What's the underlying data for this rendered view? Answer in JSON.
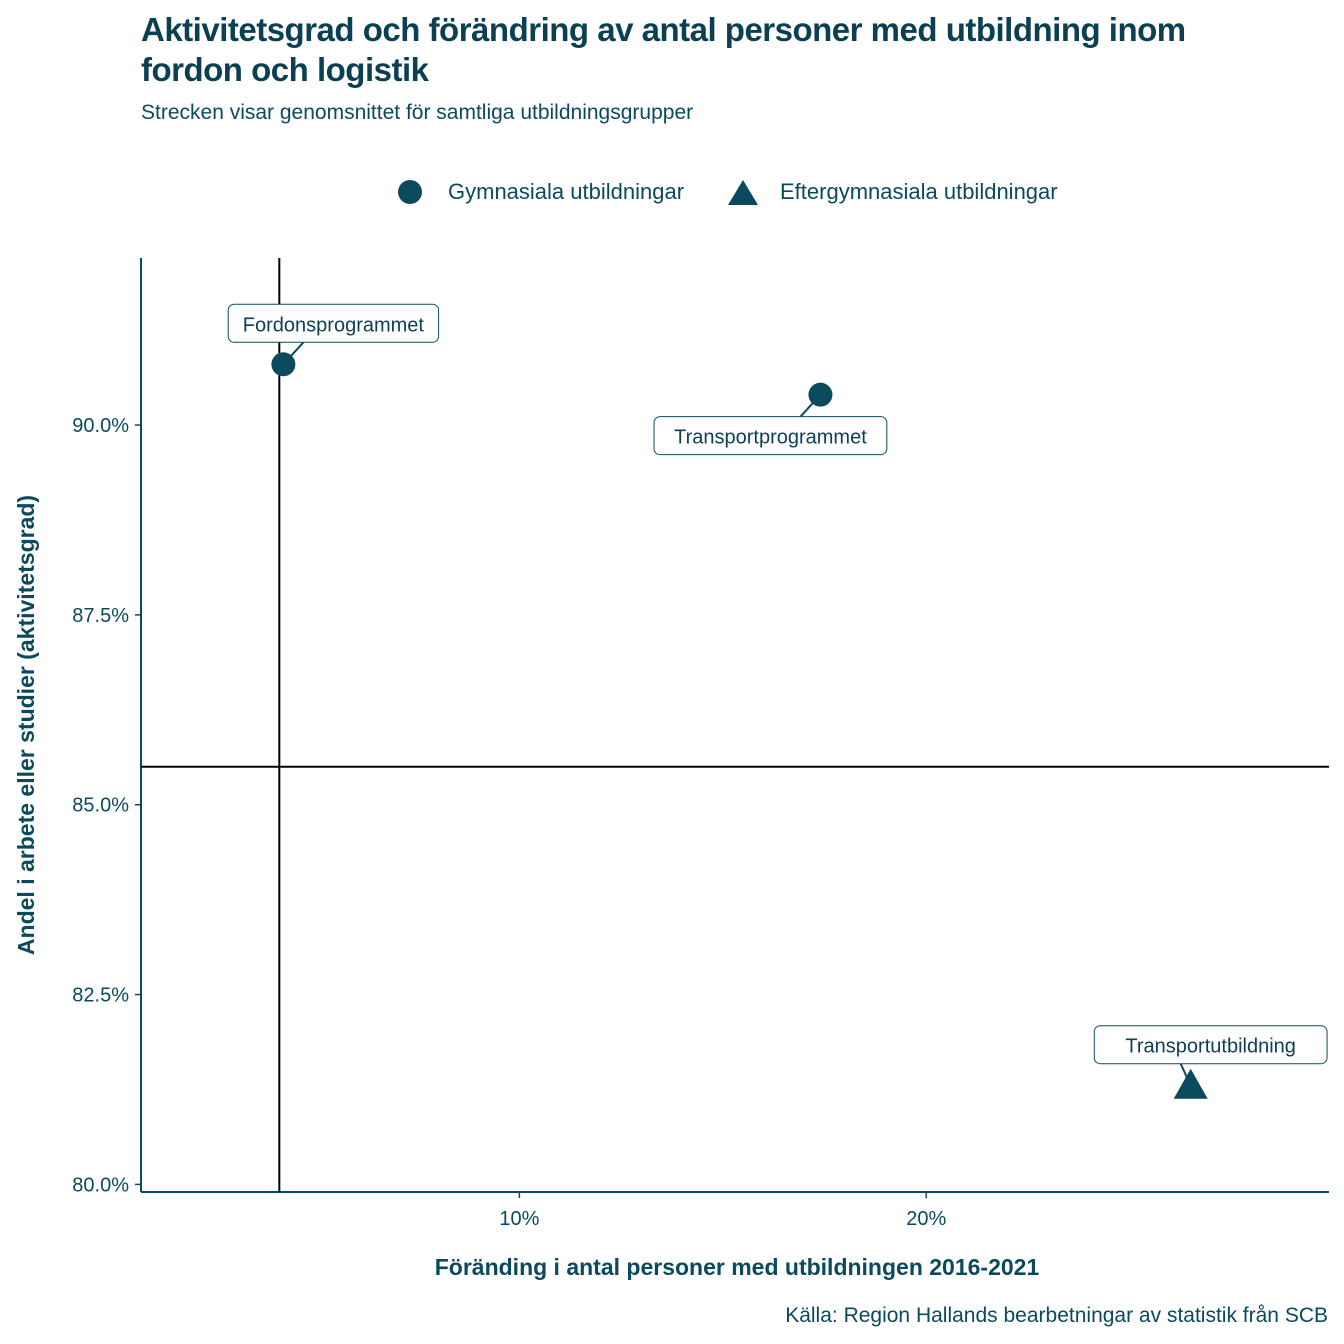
{
  "header": {
    "title": "Aktivitetsgrad och förändring av antal personer med utbildning inom fordon och logistik",
    "subtitle": "Strecken visar genomsnittet för samtliga utbildningsgrupper"
  },
  "legend": {
    "items": [
      {
        "label": "Gymnasiala utbildningar",
        "shape": "circle"
      },
      {
        "label": "Eftergymnasiala utbildningar",
        "shape": "triangle"
      }
    ]
  },
  "source": "Källa: Region Hallands bearbetningar av statistik från SCB",
  "colors": {
    "mark": "#0b4a5c",
    "text": "#0b4a5c",
    "line": "#000000",
    "axis": "#0b4a5c"
  },
  "chart_data": {
    "type": "scatter",
    "xlabel": "Föränding i antal personer med utbildningen 2016-2021",
    "ylabel": "Andel i arbete eller studier (aktivitetsgrad)",
    "xlim": [
      0.7,
      29.9
    ],
    "ylim": [
      79.9,
      92.2
    ],
    "x_ticks": [
      10,
      20
    ],
    "x_tick_labels": [
      "10%",
      "20%"
    ],
    "y_ticks": [
      80.0,
      82.5,
      85.0,
      87.5,
      90.0
    ],
    "y_tick_labels": [
      "80.0%",
      "82.5%",
      "85.0%",
      "87.5%",
      "90.0%"
    ],
    "reference_lines": {
      "x_mean": 4.1,
      "y_mean": 85.5
    },
    "points": [
      {
        "name": "Fordonsprogrammet",
        "x": 4.2,
        "y": 90.8,
        "group": "Gymnasiala utbildningar",
        "label_side": "above"
      },
      {
        "name": "Transportprogrammet",
        "x": 17.4,
        "y": 90.4,
        "group": "Gymnasiala utbildningar",
        "label_side": "below"
      },
      {
        "name": "Transportutbildning",
        "x": 26.5,
        "y": 81.3,
        "group": "Eftergymnasiala utbildningar",
        "label_side": "above"
      }
    ]
  }
}
